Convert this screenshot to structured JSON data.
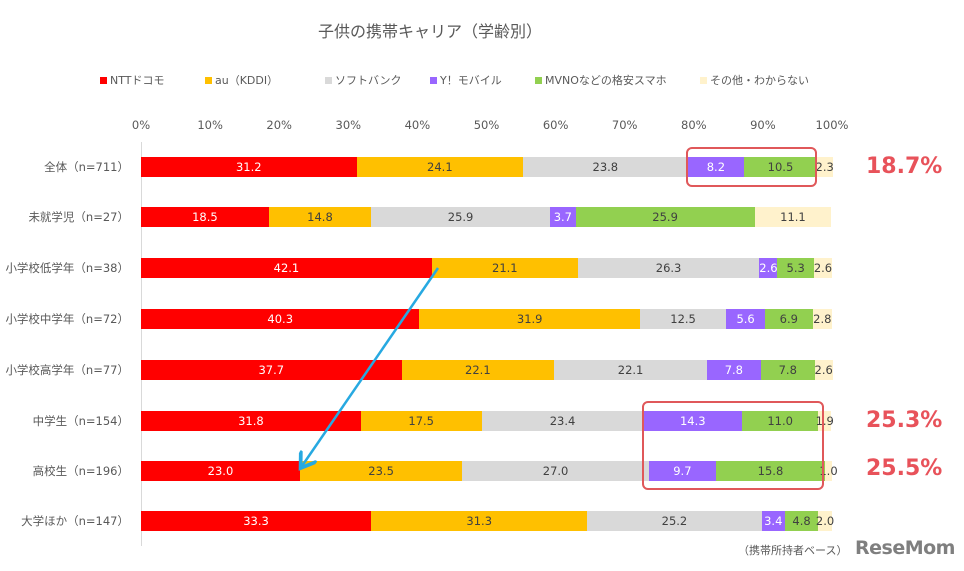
{
  "chart_data": {
    "type": "bar",
    "orientation": "horizontal",
    "stacked": "100%",
    "title": "子供の携帯キャリア（学齢別）",
    "xlabel": "",
    "ylabel": "",
    "xlim": [
      0,
      100
    ],
    "x_ticks": [
      "0%",
      "10%",
      "20%",
      "30%",
      "40%",
      "50%",
      "60%",
      "70%",
      "80%",
      "90%",
      "100%"
    ],
    "legend_position": "top",
    "grid": false,
    "categories": [
      "全体（n=711）",
      "未就学児（n=27）",
      "小学校低学年（n=38）",
      "小学校中学年（n=72）",
      "小学校高学年（n=77）",
      "中学生（n=154）",
      "高校生（n=196）",
      "大学ほか（n=147）"
    ],
    "series": [
      {
        "name": "NTTドコモ",
        "color": "#ff0000",
        "label_color": "#ffffff",
        "values": [
          31.2,
          18.5,
          42.1,
          40.3,
          37.7,
          31.8,
          23.0,
          33.3
        ]
      },
      {
        "name": "au（KDDI）",
        "color": "#ffc000",
        "label_color": "#404040",
        "values": [
          24.1,
          14.8,
          21.1,
          31.9,
          22.1,
          17.5,
          23.5,
          31.3
        ]
      },
      {
        "name": "ソフトバンク",
        "color": "#d9d9d9",
        "label_color": "#404040",
        "values": [
          23.8,
          25.9,
          26.3,
          12.5,
          22.1,
          23.4,
          27.0,
          25.2
        ]
      },
      {
        "name": "Y！モバイル",
        "color": "#9966ff",
        "label_color": "#ffffff",
        "values": [
          8.2,
          3.7,
          2.6,
          5.6,
          7.8,
          14.3,
          9.7,
          3.4
        ]
      },
      {
        "name": "MVNOなどの格安スマホ",
        "color": "#92d050",
        "label_color": "#404040",
        "values": [
          10.5,
          25.9,
          5.3,
          6.9,
          7.8,
          11.0,
          15.8,
          4.8
        ]
      },
      {
        "name": "その他・わからない",
        "color": "#fff2cc",
        "label_color": "#404040",
        "values": [
          2.3,
          11.1,
          2.6,
          2.8,
          2.6,
          1.9,
          1.0,
          2.0
        ]
      }
    ],
    "annotations": [
      {
        "row": 0,
        "text": "18.7%",
        "note": "Y!モバイル + MVNO highlighted"
      },
      {
        "row": 5,
        "text": "25.3%",
        "note": "Y!モバイル + MVNO highlighted"
      },
      {
        "row": 6,
        "text": "25.5%",
        "note": "Y!モバイル + MVNO highlighted"
      },
      {
        "type": "arrow",
        "from_row": 2,
        "to_row": 6,
        "note": "NTTドコモ share decreases 42.1 → 23.0"
      }
    ],
    "footnote": "（携帯所持者ベース）"
  },
  "footer": {
    "footnote": "（携帯所持者ベース）",
    "logo": "ReseMom"
  }
}
